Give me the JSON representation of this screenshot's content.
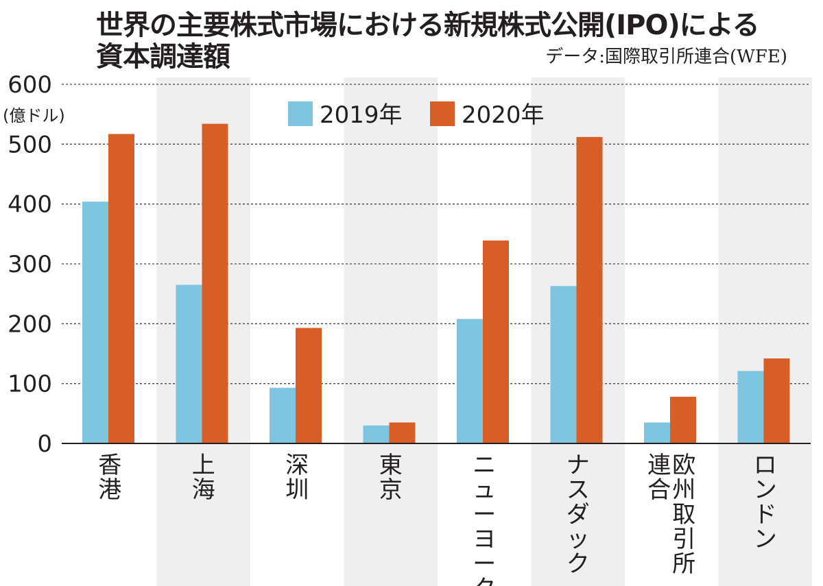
{
  "title_line1": "世界の主要株式市場における新規株式公開(IPO)による",
  "title_line2": "資本調達額",
  "source": "データ:国際取引所連合(WFE)",
  "colors": {
    "s2019": "#7ec6df",
    "s2020": "#d75f27",
    "band": "#efefef",
    "grid": "#444444"
  },
  "chart_data": {
    "type": "bar",
    "title": "世界の主要株式市場における新規株式公開(IPO)による資本調達額",
    "ylabel": "(億ドル)",
    "ylim": [
      0,
      600
    ],
    "yticks": [
      0,
      100,
      200,
      300,
      400,
      500,
      600
    ],
    "grid": true,
    "legend_position": "top",
    "categories": [
      "香港",
      "上海",
      "深圳",
      "東京",
      "ニューヨーク",
      "ナスダック",
      "欧州取引所連合",
      "ロンドン"
    ],
    "category_label_lines": [
      [
        "香港"
      ],
      [
        "上海"
      ],
      [
        "深圳"
      ],
      [
        "東京"
      ],
      [
        "ニューヨーク"
      ],
      [
        "ナスダック"
      ],
      [
        "欧州取引所",
        "連合"
      ],
      [
        "ロンドン"
      ]
    ],
    "series": [
      {
        "name": "2019年",
        "values": [
          404,
          265,
          93,
          30,
          208,
          263,
          35,
          121
        ]
      },
      {
        "name": "2020年",
        "values": [
          517,
          534,
          193,
          35,
          339,
          512,
          78,
          142
        ]
      }
    ]
  }
}
